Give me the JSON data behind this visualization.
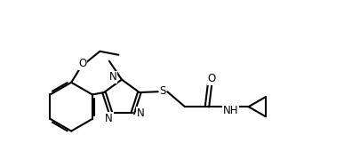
{
  "background_color": "#ffffff",
  "line_color": "#000000",
  "line_width": 1.5,
  "font_size": 8.5,
  "figsize": [
    4.06,
    1.88
  ],
  "dpi": 100,
  "xlim": [
    -0.3,
    8.8
  ],
  "ylim": [
    -1.8,
    2.8
  ]
}
